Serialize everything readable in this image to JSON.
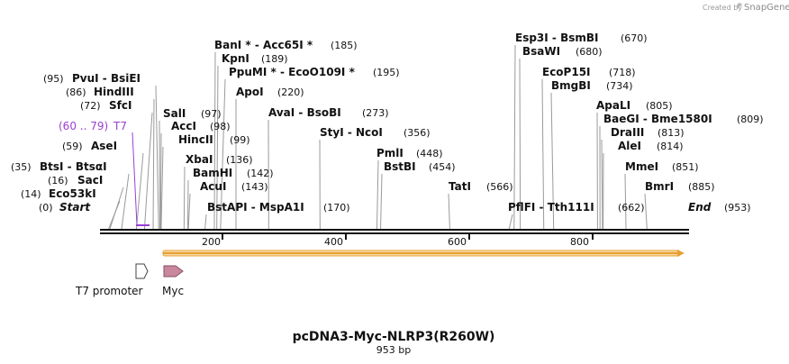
{
  "watermark": {
    "prefix": "Created by",
    "brand": "SnapGene"
  },
  "map": {
    "title": "pcDNA3-Myc-NLRP3(R260W)",
    "length": "953 bp"
  },
  "sites": [
    {
      "text": "(0)",
      "name": "Start",
      "italic": true,
      "bp": 0
    },
    {
      "text": "(14)",
      "name": "Eco53kI",
      "bp": 14
    },
    {
      "text": "(16)",
      "name": "SacI",
      "bp": 16
    },
    {
      "text": "(35)",
      "name": "BtsI  -  BtsαI",
      "bp": 35
    },
    {
      "text": "(59)",
      "name": "AseI",
      "bp": 59
    },
    {
      "text": "(60 .. 79)",
      "name": "T7",
      "primer": true,
      "bp": 60
    },
    {
      "text": "(72)",
      "name": "SfcI",
      "bp": 72
    },
    {
      "text": "(86)",
      "name": "HindIII",
      "bp": 86
    },
    {
      "text": "(95)",
      "name": "PvuI  -  BsiEI",
      "bp": 95
    },
    {
      "name": "SalI",
      "text": "(97)",
      "bp": 97
    },
    {
      "name": "AccI",
      "text": "(98)",
      "bp": 98
    },
    {
      "name": "HincII",
      "text": "(99)",
      "bp": 99
    },
    {
      "name": "XbaI",
      "text": "(136)",
      "bp": 136
    },
    {
      "name": "BamHI",
      "text": "(142)",
      "bp": 142
    },
    {
      "name": "AcuI",
      "text": "(143)",
      "bp": 143
    },
    {
      "name": "BstAPI  -  MspA1I",
      "text": "(170)",
      "bp": 170
    },
    {
      "name": "BanI *  -  Acc65I *",
      "text": "(185)",
      "bp": 185
    },
    {
      "name": "KpnI",
      "text": "(189)",
      "bp": 189
    },
    {
      "name": "PpuMI *  -  EcoO109I *",
      "text": "(195)",
      "bp": 195
    },
    {
      "name": "ApoI",
      "text": "(220)",
      "bp": 220
    },
    {
      "name": "AvaI  -  BsoBI",
      "text": "(273)",
      "bp": 273
    },
    {
      "name": "StyI  -  NcoI",
      "text": "(356)",
      "bp": 356
    },
    {
      "name": "PmlI",
      "text": "(448)",
      "bp": 448
    },
    {
      "name": "BstBI",
      "text": "(454)",
      "bp": 454
    },
    {
      "name": "TatI",
      "text": "(566)",
      "bp": 566
    },
    {
      "name": "PflFI  -  Tth111I",
      "text": "(662)",
      "bp": 662
    },
    {
      "name": "Esp3I  -  BsmBI",
      "text": "(670)",
      "bp": 670
    },
    {
      "name": "BsaWI",
      "text": "(680)",
      "bp": 680
    },
    {
      "name": "EcoP15I",
      "text": "(718)",
      "bp": 718
    },
    {
      "name": "BmgBI",
      "text": "(734)",
      "bp": 734
    },
    {
      "name": "ApaLI",
      "text": "(805)",
      "bp": 805
    },
    {
      "name": "BaeGI  -  Bme1580I",
      "text": "(809)",
      "bp": 809
    },
    {
      "name": "DraIII",
      "text": "(813)",
      "bp": 813
    },
    {
      "name": "AleI",
      "text": "(814)",
      "bp": 814
    },
    {
      "name": "MmeI",
      "text": "(851)",
      "bp": 851
    },
    {
      "name": "BmrI",
      "text": "(885)",
      "bp": 885
    },
    {
      "name": "End",
      "text": "(953)",
      "italic": true,
      "bp": 953
    }
  ],
  "ruler": {
    "ticks": [
      "200",
      "400",
      "600",
      "800"
    ]
  },
  "features": [
    {
      "name": "T7 promoter",
      "bp_start": 60,
      "bp_end": 79
    },
    {
      "name": "Myc",
      "bp_start": 100,
      "bp_end": 130
    }
  ],
  "orf": {
    "bp_start": 100,
    "bp_end": 953
  },
  "colors": {
    "primer": "#9a3fd1",
    "orf_fill": "#f6d9a6",
    "orf_line": "#e8a030",
    "myc": "#c9879e",
    "promoter": "#ffffff"
  }
}
